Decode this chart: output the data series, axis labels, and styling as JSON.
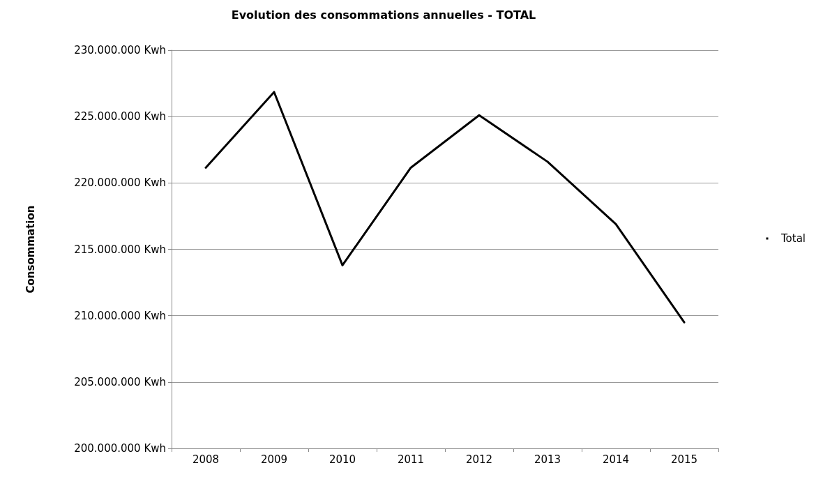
{
  "chart_data": {
    "type": "line",
    "title": "Evolution des consommations annuelles - TOTAL",
    "ylabel": "Consommation",
    "categories": [
      "2008",
      "2009",
      "2010",
      "2011",
      "2012",
      "2013",
      "2014",
      "2015"
    ],
    "series": [
      {
        "name": "Total",
        "color": "#000000",
        "values": [
          221150000,
          226850000,
          213800000,
          221150000,
          225100000,
          221600000,
          216900000,
          209500000
        ]
      }
    ],
    "ylim": [
      200000000,
      230000000
    ],
    "yticks": [
      {
        "value": 200000000,
        "label": "200.000.000 Kwh"
      },
      {
        "value": 205000000,
        "label": "205.000.000 Kwh"
      },
      {
        "value": 210000000,
        "label": "210.000.000 Kwh"
      },
      {
        "value": 215000000,
        "label": "215.000.000 Kwh"
      },
      {
        "value": 220000000,
        "label": "220.000.000 Kwh"
      },
      {
        "value": 225000000,
        "label": "225.000.000 Kwh"
      },
      {
        "value": 230000000,
        "label": "230.000.000 Kwh"
      }
    ],
    "grid": "y",
    "legend": "right",
    "marker": "none",
    "line_style": "solid"
  }
}
